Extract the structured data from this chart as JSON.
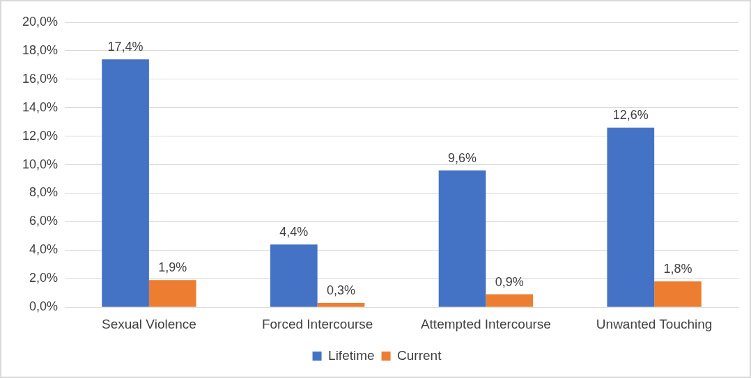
{
  "chart_data": {
    "type": "bar",
    "categories": [
      "Sexual Violence",
      "Forced Intercourse",
      "Attempted Intercourse",
      "Unwanted Touching"
    ],
    "series": [
      {
        "name": "Lifetime",
        "color": "#4472c4",
        "values": [
          17.4,
          4.4,
          9.6,
          12.6
        ],
        "value_labels": [
          "17,4%",
          "4,4%",
          "9,6%",
          "12,6%"
        ]
      },
      {
        "name": "Current",
        "color": "#ed7d31",
        "values": [
          1.9,
          0.3,
          0.9,
          1.8
        ],
        "value_labels": [
          "1,9%",
          "0,3%",
          "0,9%",
          "1,8%"
        ]
      }
    ],
    "ylim": [
      0,
      20
    ],
    "yticks": [
      {
        "value": 0,
        "label": "0,0%"
      },
      {
        "value": 2,
        "label": "2,0%"
      },
      {
        "value": 4,
        "label": "4,0%"
      },
      {
        "value": 6,
        "label": "6,0%"
      },
      {
        "value": 8,
        "label": "8,0%"
      },
      {
        "value": 10,
        "label": "10,0%"
      },
      {
        "value": 12,
        "label": "12,0%"
      },
      {
        "value": 14,
        "label": "14,0%"
      },
      {
        "value": 16,
        "label": "16,0%"
      },
      {
        "value": 18,
        "label": "18,0%"
      },
      {
        "value": 20,
        "label": "20,0%"
      }
    ],
    "grid": "y",
    "legend": "bottom"
  }
}
